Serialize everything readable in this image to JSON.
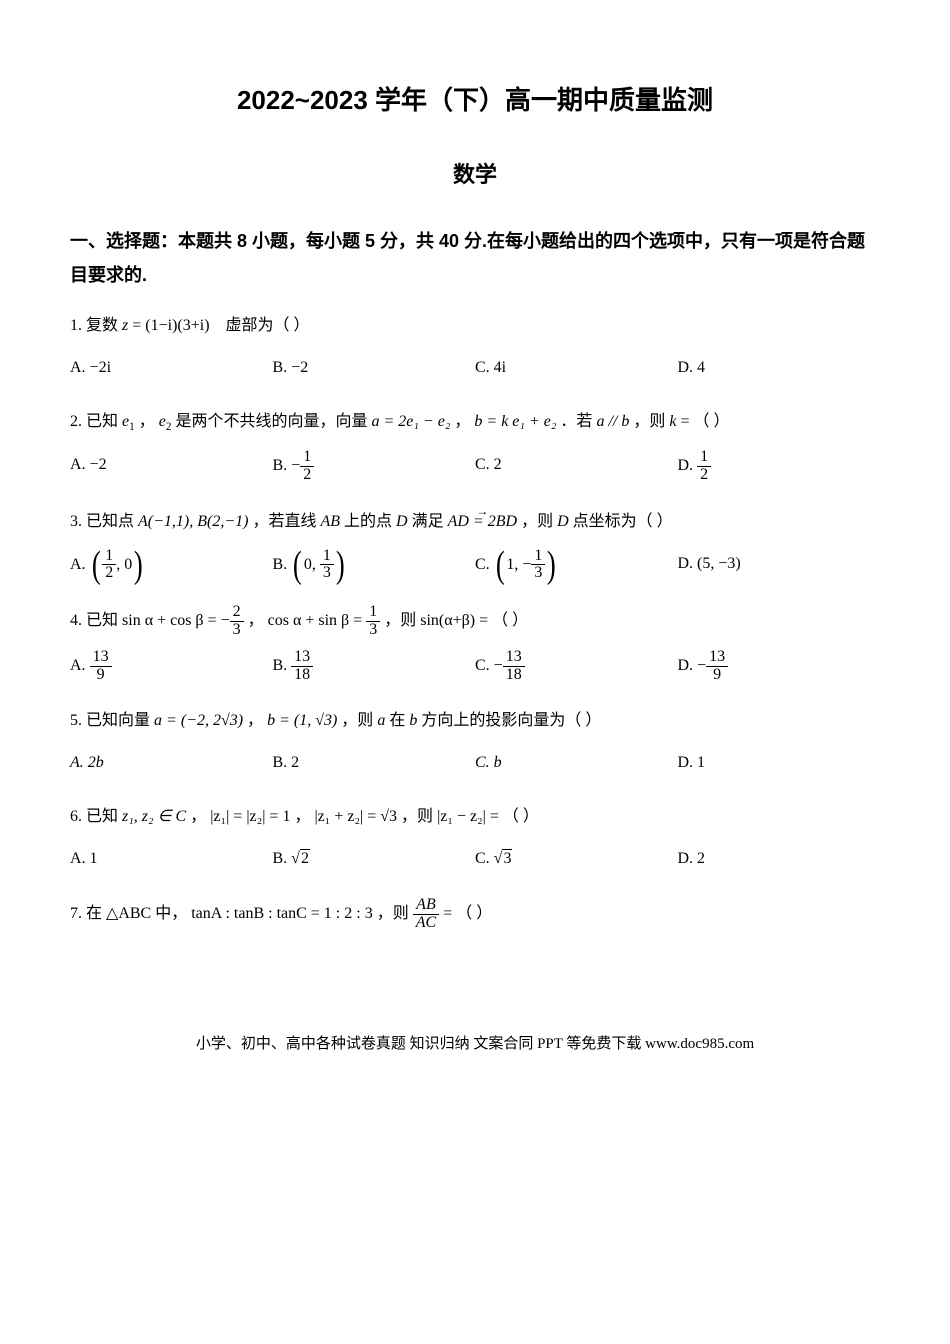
{
  "doc": {
    "title": "2022~2023 学年（下）高一期中质量监测",
    "subtitle": "数学"
  },
  "section1": {
    "header": "一、选择题：本题共 8 小题，每小题 5 分，共 40 分.在每小题给出的四个选项中，只有一项是符合题目要求的."
  },
  "q1": {
    "num": "1.",
    "pre": "复数",
    "z": "z",
    "eq": "= (1−i)(3+i)",
    "post": "虚部为（ ）",
    "A": "A. −2i",
    "B": "B. −2",
    "C": "C. 4i",
    "D": "D. 4"
  },
  "q2": {
    "num": "2.",
    "t1": "已知",
    "e1": "e",
    "s1": "1",
    "comma": "，",
    "e2": "e",
    "s2": "2",
    "t2": "是两个不共线的向量，向量",
    "expr_a": "a = 2e₁ − e₂",
    "comma2": "，",
    "expr_b": "b = k e₁ + e₂",
    "t3": "．若",
    "cond": "a // b",
    "t4": "，则",
    "k": "k",
    "t5": " = （ ）",
    "A": "A. −2",
    "B_pre": "B. ",
    "B_neg": "−",
    "B_num": "1",
    "B_den": "2",
    "C": "C. 2",
    "D_pre": "D. ",
    "D_num": "1",
    "D_den": "2"
  },
  "q3": {
    "num": "3.",
    "t1": "已知点",
    "A": "A(−1,1), B(2,−1)",
    "t2": "，若直线",
    "AB": "AB",
    "t3": "上的点",
    "Dp": "D",
    "t4": "满足",
    "cond": "AD = 2BD",
    "t5": "，则",
    "Dp2": "D",
    "t6": "点坐标为（ ）",
    "optA_pre": "A. ",
    "optA_num": "1",
    "optA_den": "2",
    "optA_rest": ", 0",
    "optB_pre": "B. ",
    "optB_l": "0, ",
    "optB_num": "1",
    "optB_den": "3",
    "optC_pre": "C. ",
    "optC_l": "1, −",
    "optC_num": "1",
    "optC_den": "3",
    "optD": "D. (5, −3)"
  },
  "q4": {
    "num": "4.",
    "t1": "已知",
    "lhs1": "sin α + cos β = −",
    "n1": "2",
    "d1": "3",
    "comma": "，",
    "lhs2": "cos α + sin β = ",
    "n2": "1",
    "d2": "3",
    "t2": "，则",
    "expr": "sin(α+β)",
    "eq": " = （ ）",
    "A_pre": "A. ",
    "A_num": "13",
    "A_den": "9",
    "B_pre": "B. ",
    "B_num": "13",
    "B_den": "18",
    "C_pre": "C. ",
    "C_neg": "−",
    "C_num": "13",
    "C_den": "18",
    "D_pre": "D. ",
    "D_neg": "−",
    "D_num": "13",
    "D_den": "9"
  },
  "q5": {
    "num": "5.",
    "t1": "已知向量",
    "a_expr": "a = (−2, 2√3)",
    "comma": "，",
    "b_expr": "b = (1, √3)",
    "t2": "，则",
    "a": "a",
    "t3": "在",
    "b": "b",
    "t4": "方向上的投影向量为（ ）",
    "A": "A. 2b",
    "B": "B. 2",
    "C": "C. b",
    "D": "D. 1"
  },
  "q6": {
    "num": "6.",
    "t1": "已知",
    "z12": "z₁, z₂ ∈ C",
    "comma": "，",
    "c1": "|z₁| = |z₂| = 1",
    "comma2": "，",
    "c2": "|z₁ + z₂| = √3",
    "t2": "，则",
    "c3": "|z₁ − z₂|",
    "eq": " = （ ）",
    "A": "A. 1",
    "B_pre": "B. ",
    "B_sqrt": "2",
    "C_pre": "C. ",
    "C_sqrt": "3",
    "D": "D. 2"
  },
  "q7": {
    "num": "7.",
    "t1": "在",
    "tri": "△ABC",
    "t2": "中，",
    "cond": "tanA : tanB : tanC = 1 : 2 : 3",
    "t3": "，则",
    "frac_num": "AB",
    "frac_den": "AC",
    "eq": " = （ ）"
  },
  "footer": "小学、初中、高中各种试卷真题 知识归纳 文案合同 PPT 等免费下载  www.doc985.com"
}
